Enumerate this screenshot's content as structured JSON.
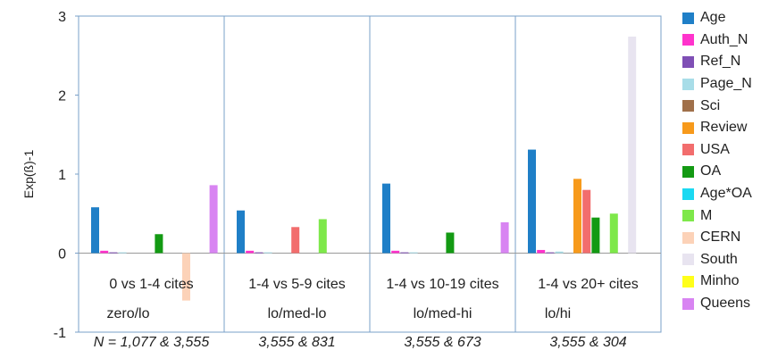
{
  "chart_data": {
    "type": "bar",
    "ylabel": "Exp(ß)-1",
    "ylim": [
      -1,
      3
    ],
    "yticks": [
      -1,
      0,
      1,
      2,
      3
    ],
    "grid": false,
    "legend_position": "right",
    "groups": [
      {
        "label": "0 vs 1-4 cites",
        "sublabel": "zero/lo",
        "sample": "N = 1,077 & 3,555"
      },
      {
        "label": "1-4 vs 5-9 cites",
        "sublabel": "lo/med-lo",
        "sample": "3,555 & 831"
      },
      {
        "label": "1-4 vs 10-19 cites",
        "sublabel": "lo/med-hi",
        "sample": "3,555 & 673"
      },
      {
        "label": "1-4 vs 20+ cites",
        "sublabel": "lo/hi",
        "sample": "3,555 & 304"
      }
    ],
    "series": [
      {
        "name": "Age",
        "color": "#1f7fc7",
        "values": [
          0.58,
          0.54,
          0.88,
          1.31
        ]
      },
      {
        "name": "Auth_N",
        "color": "#ff33cc",
        "values": [
          0.03,
          0.03,
          0.03,
          0.04
        ]
      },
      {
        "name": "Ref_N",
        "color": "#7f4fb5",
        "values": [
          0.01,
          0.01,
          0.01,
          0.01
        ]
      },
      {
        "name": "Page_N",
        "color": "#a8dde8",
        "values": [
          0.01,
          0.01,
          0.01,
          0.02
        ]
      },
      {
        "name": "Sci",
        "color": "#a0704a",
        "values": [
          0,
          0,
          0,
          0
        ]
      },
      {
        "name": "Review",
        "color": "#f79a1b",
        "values": [
          0,
          0,
          0,
          0.94
        ]
      },
      {
        "name": "USA",
        "color": "#f26d6d",
        "values": [
          0,
          0.33,
          0,
          0.8
        ]
      },
      {
        "name": "OA",
        "color": "#139a13",
        "values": [
          0.24,
          0,
          0.26,
          0.45
        ]
      },
      {
        "name": "Age*OA",
        "color": "#1ad9f2",
        "values": [
          0,
          0,
          0,
          0
        ]
      },
      {
        "name": "M",
        "color": "#7ee84a",
        "values": [
          0,
          0.43,
          0,
          0.5
        ]
      },
      {
        "name": "CERN",
        "color": "#fcd2b8",
        "values": [
          -0.6,
          0,
          0,
          0
        ]
      },
      {
        "name": "South",
        "color": "#e8e4f0",
        "values": [
          0,
          0,
          0,
          2.74
        ]
      },
      {
        "name": "Minho",
        "color": "#ffff1a",
        "values": [
          0,
          0,
          0,
          0
        ]
      },
      {
        "name": "Queens",
        "color": "#d884f2",
        "values": [
          0.86,
          0,
          0.39,
          0
        ]
      }
    ]
  }
}
